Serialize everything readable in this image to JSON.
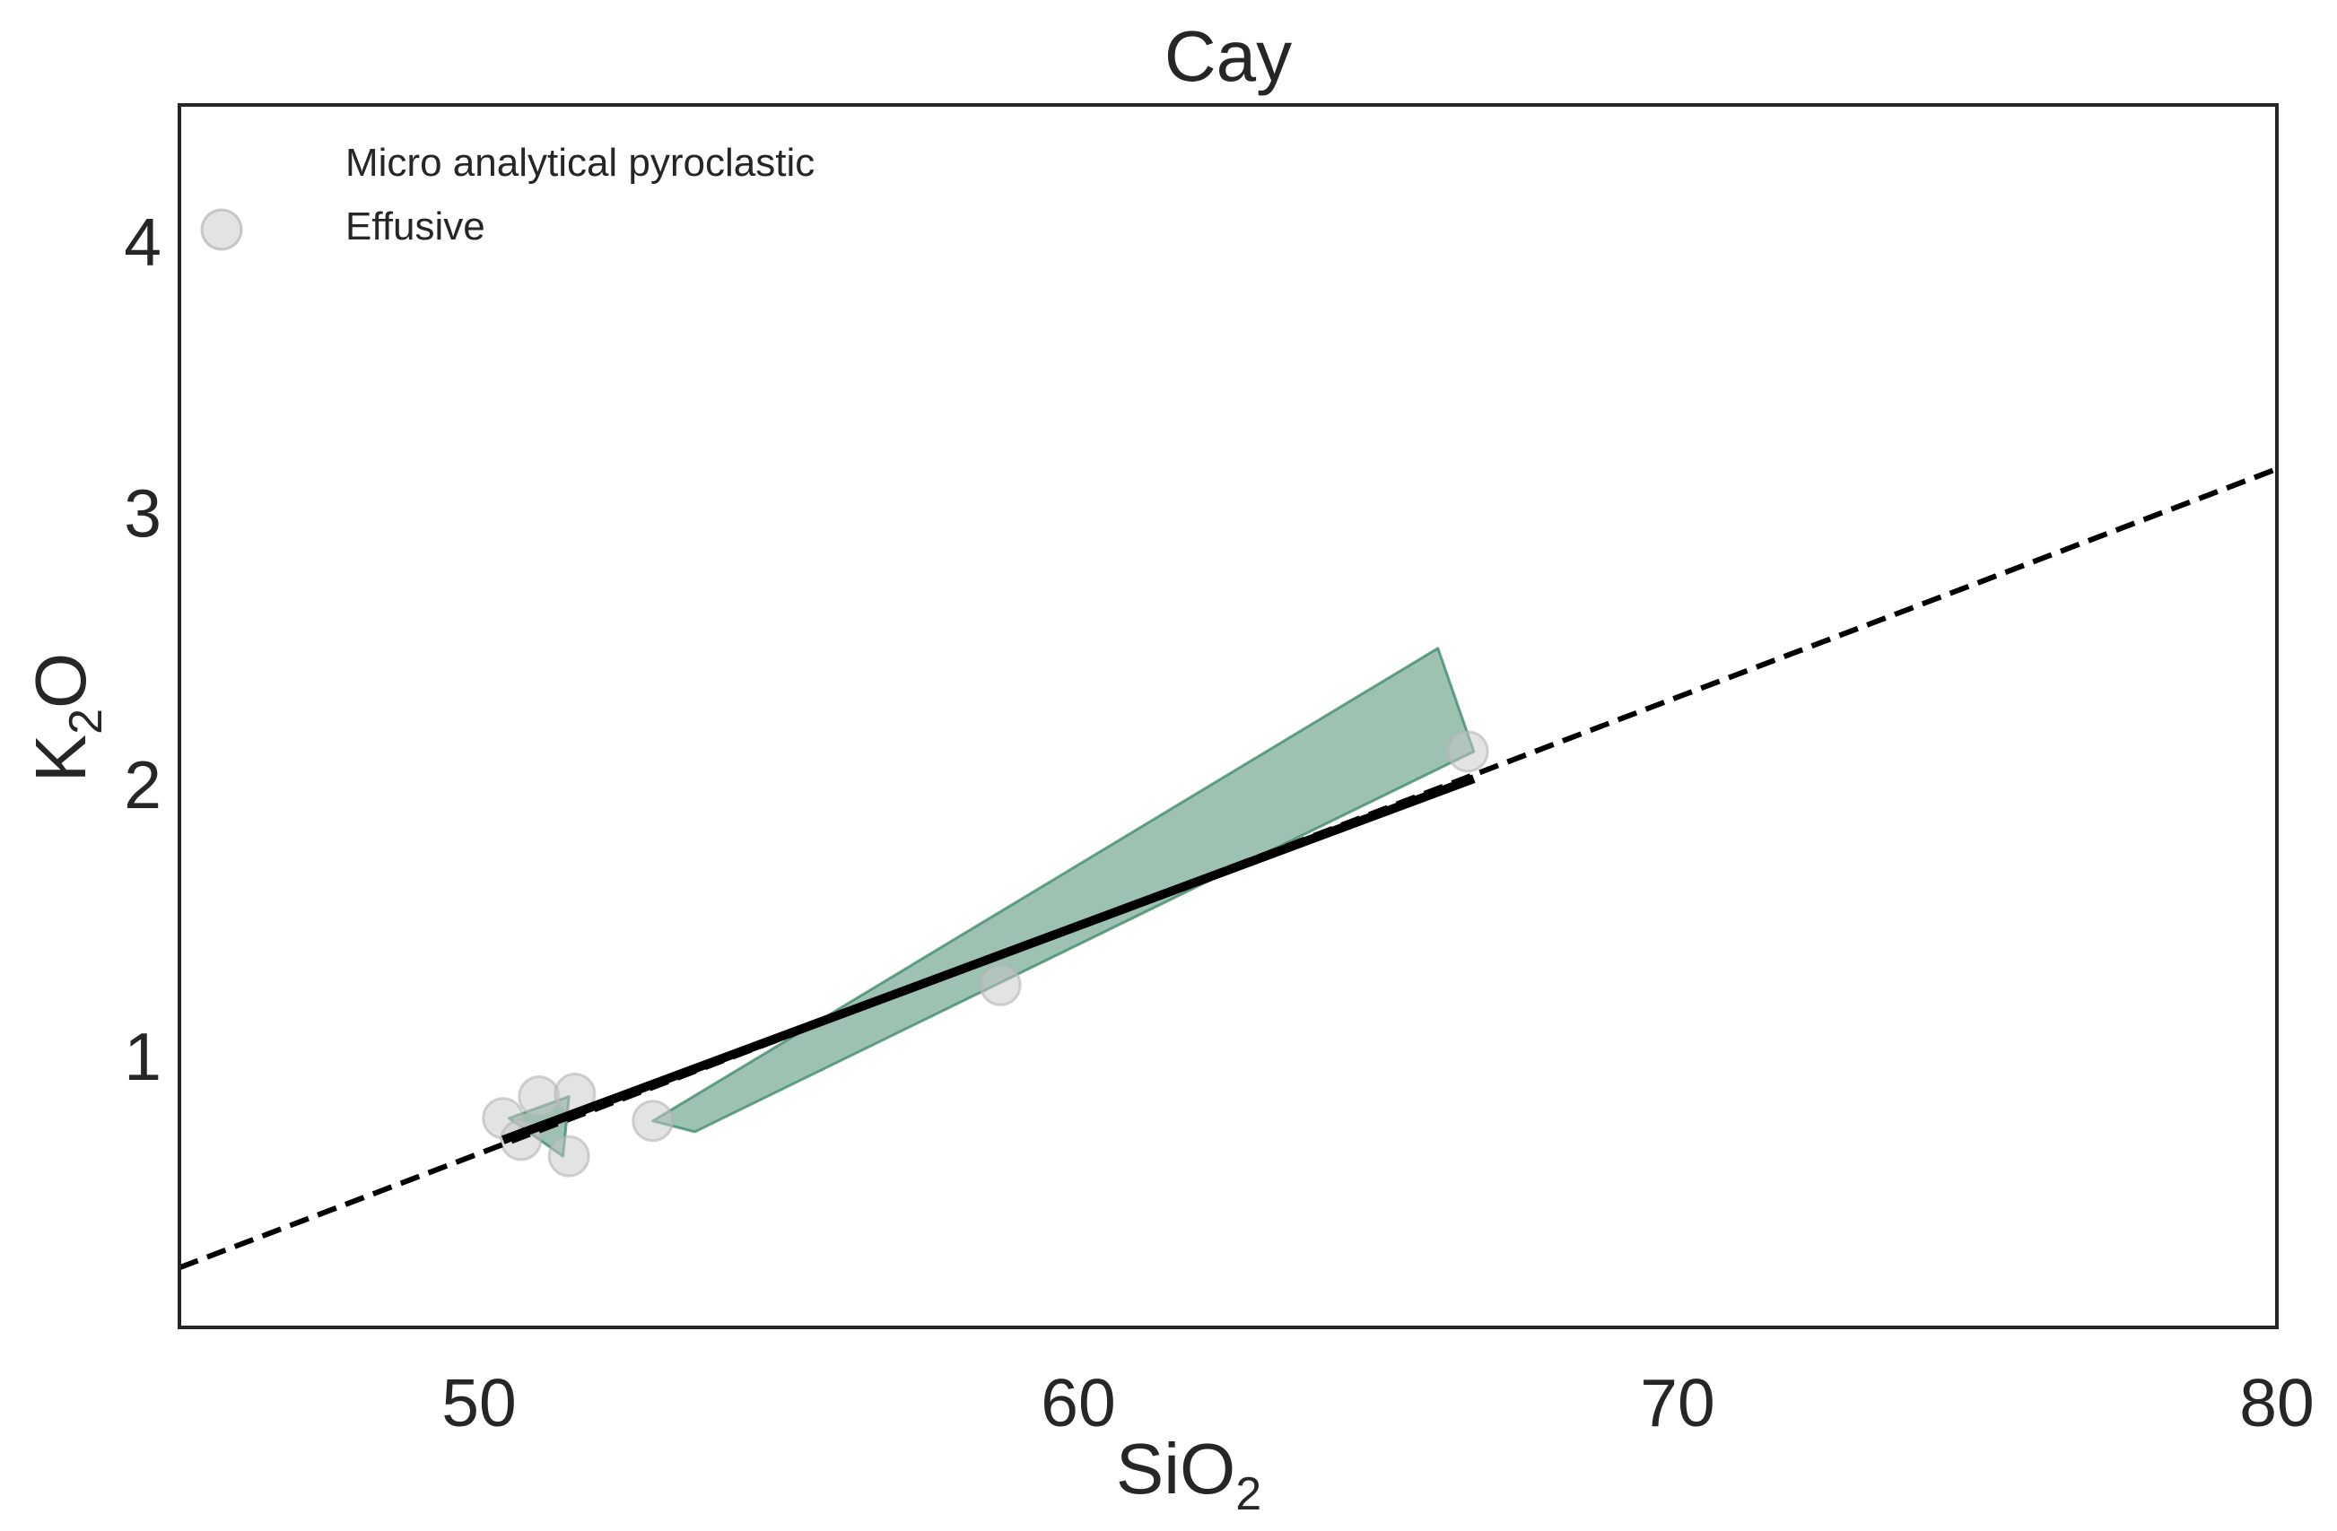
{
  "chart_data": {
    "type": "scatter",
    "title": "Cay",
    "xlabel": {
      "main": "SiO",
      "sub": "2"
    },
    "ylabel": {
      "main": "K",
      "sub": "2",
      "rest": "O"
    },
    "xlim": [
      45,
      80
    ],
    "ylim": [
      0,
      4.5
    ],
    "xticks": [
      50,
      60,
      70,
      80
    ],
    "yticks": [
      1,
      2,
      3,
      4
    ],
    "grid": false,
    "legend": {
      "placement": "top-left",
      "entries": [
        {
          "label": "Micro analytical pyroclastic",
          "marker": "none"
        },
        {
          "label": "Effusive",
          "marker": "circle"
        }
      ]
    },
    "series": [
      {
        "name": "Micro analytical pyroclastic",
        "kind": "polygons",
        "color": "#3b8566",
        "polygons": [
          {
            "points": [
              [
                50.5,
                0.77
              ],
              [
                51.5,
                0.85
              ],
              [
                51.4,
                0.63
              ]
            ]
          },
          {
            "points": [
              [
                52.9,
                0.76
              ],
              [
                66.0,
                2.5
              ],
              [
                66.6,
                2.12
              ],
              [
                53.6,
                0.72
              ]
            ]
          }
        ]
      },
      {
        "name": "Effusive",
        "kind": "points",
        "color": "#c8c8c8",
        "points": [
          {
            "x": 50.4,
            "y": 0.77
          },
          {
            "x": 50.7,
            "y": 0.69
          },
          {
            "x": 51.0,
            "y": 0.85
          },
          {
            "x": 51.6,
            "y": 0.86
          },
          {
            "x": 51.5,
            "y": 0.63
          },
          {
            "x": 52.9,
            "y": 0.76
          },
          {
            "x": 58.7,
            "y": 1.26
          },
          {
            "x": 66.5,
            "y": 2.12
          }
        ]
      },
      {
        "name": "",
        "kind": "solid-line",
        "color": "#000000",
        "points": [
          [
            50.4,
            0.69
          ],
          [
            66.6,
            2.02
          ]
        ]
      },
      {
        "name": "",
        "kind": "dashed-line",
        "color": "#000000",
        "points": [
          [
            45,
            0.22
          ],
          [
            80,
            3.16
          ]
        ]
      }
    ]
  }
}
